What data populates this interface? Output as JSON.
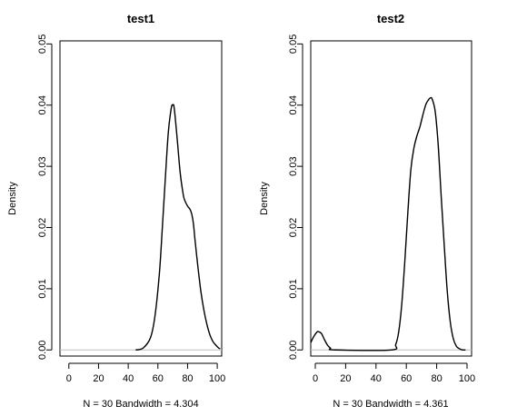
{
  "chart_data": [
    {
      "type": "line",
      "title": "test1",
      "xlabel": "N = 30   Bandwidth = 4.304",
      "ylabel": "Density",
      "xlim": [
        -6,
        103
      ],
      "ylim": [
        -0.001,
        0.0505
      ],
      "xticks": [
        0,
        20,
        40,
        60,
        80,
        100
      ],
      "yticks": [
        0.0,
        0.01,
        0.02,
        0.03,
        0.04,
        0.05
      ],
      "ytick_labels": [
        "0.00",
        "0.01",
        "0.02",
        "0.03",
        "0.04",
        "0.05"
      ],
      "grid": false,
      "baseline": 0,
      "series": [
        {
          "x": [
            45,
            50,
            55,
            58,
            61,
            63,
            65,
            67,
            69,
            70,
            71,
            73,
            75,
            77,
            78,
            80,
            81,
            82,
            83,
            84,
            85,
            87,
            89,
            91,
            93,
            95,
            97,
            99,
            101,
            102
          ],
          "y": [
            0,
            0.0003,
            0.002,
            0.0055,
            0.0125,
            0.02,
            0.028,
            0.0355,
            0.0395,
            0.04,
            0.0395,
            0.0345,
            0.029,
            0.0255,
            0.0245,
            0.0235,
            0.0232,
            0.0228,
            0.022,
            0.0205,
            0.018,
            0.0135,
            0.0095,
            0.0065,
            0.0042,
            0.0025,
            0.0014,
            0.0008,
            0.0003,
            0.0002
          ]
        }
      ]
    },
    {
      "type": "line",
      "title": "test2",
      "xlabel": "N = 30   Bandwidth = 4.361",
      "ylabel": "Density",
      "xlim": [
        -3,
        103
      ],
      "ylim": [
        -0.001,
        0.0505
      ],
      "xticks": [
        0,
        20,
        40,
        60,
        80,
        100
      ],
      "yticks": [
        0.0,
        0.01,
        0.02,
        0.03,
        0.04,
        0.05
      ],
      "ytick_labels": [
        "0.00",
        "0.01",
        "0.02",
        "0.03",
        "0.04",
        "0.05"
      ],
      "grid": false,
      "baseline": 0,
      "series": [
        {
          "x": [
            -3,
            -1,
            1,
            2,
            4,
            6,
            8,
            10,
            13,
            50,
            53,
            55,
            57,
            59,
            61,
            63,
            65,
            67,
            69,
            71,
            73,
            75,
            76,
            77,
            79,
            81,
            83,
            85,
            87,
            89,
            91,
            93,
            95,
            97,
            99
          ],
          "y": [
            0.0012,
            0.0022,
            0.0029,
            0.003,
            0.0027,
            0.0017,
            0.0008,
            0.0003,
            0,
            0,
            0.0009,
            0.003,
            0.0075,
            0.0145,
            0.0225,
            0.0295,
            0.033,
            0.035,
            0.0365,
            0.0385,
            0.0402,
            0.041,
            0.0412,
            0.041,
            0.039,
            0.0335,
            0.025,
            0.017,
            0.0095,
            0.0045,
            0.0018,
            0.0006,
            0.0002,
            0,
            0
          ]
        }
      ]
    }
  ]
}
